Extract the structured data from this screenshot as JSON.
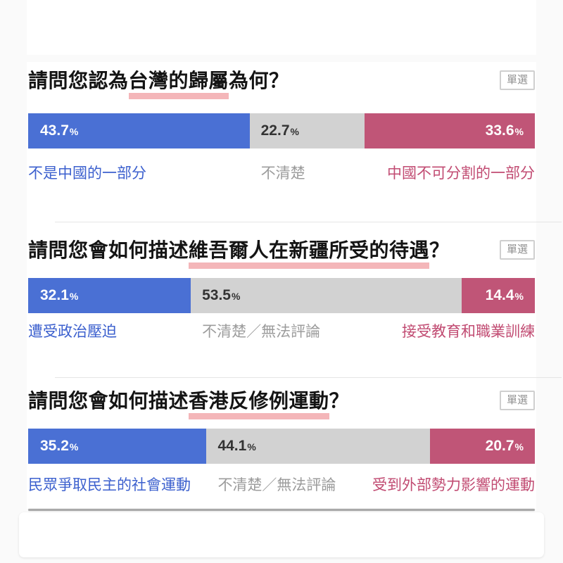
{
  "badge_label": "單選",
  "percent_sign": "%",
  "colors": {
    "page_background": "#fafafa",
    "card_background": "#ffffff",
    "bar_blue": "#4a70d4",
    "bar_gray": "#d2d2d2",
    "bar_pink": "#c05577",
    "label_blue": "#3c60ce",
    "label_gray": "#9c9c9c",
    "label_pink": "#c14b72",
    "title_highlight": "#f4b6b9",
    "divider": "#e5e5e5"
  },
  "questions": [
    {
      "title_prefix": "請問您認為",
      "title_highlight": "台灣的歸屬",
      "title_suffix": "為何？",
      "badge": "單選",
      "segments": [
        {
          "label": "不是中國的一部分",
          "value": 43.7
        },
        {
          "label": "不清楚",
          "value": 22.7
        },
        {
          "label": "中國不可分割的一部分",
          "value": 33.6
        }
      ]
    },
    {
      "title_prefix": "請問您會如何描述",
      "title_highlight": "維吾爾人在新疆所受的待遇",
      "title_suffix": "？",
      "badge": "單選",
      "segments": [
        {
          "label": "遭受政治壓迫",
          "value": 32.1
        },
        {
          "label": "不清楚／無法評論",
          "value": 53.5
        },
        {
          "label": "接受教育和職業訓練",
          "value": 14.4
        }
      ]
    },
    {
      "title_prefix": "請問您會如何描述",
      "title_highlight": "香港反修例運動",
      "title_suffix": "？",
      "badge": "單選",
      "segments": [
        {
          "label": "民眾爭取民主的社會運動",
          "value": 35.2
        },
        {
          "label": "不清楚／無法評論",
          "value": 44.1
        },
        {
          "label": "受到外部勢力影響的運動",
          "value": 20.7
        }
      ]
    }
  ],
  "chart_data": [
    {
      "type": "bar",
      "subtype": "horizontal-stacked-100percent",
      "title": "請問您認為台灣的歸屬為何？",
      "badge": "單選",
      "categories": [
        "不是中國的一部分",
        "不清楚",
        "中國不可分割的一部分"
      ],
      "values": [
        43.7,
        22.7,
        33.6
      ],
      "colors": [
        "#4a70d4",
        "#d2d2d2",
        "#c05577"
      ],
      "xlim": [
        0,
        100
      ],
      "grid": false,
      "legend_position": "below-bar-inline"
    },
    {
      "type": "bar",
      "subtype": "horizontal-stacked-100percent",
      "title": "請問您會如何描述維吾爾人在新疆所受的待遇？",
      "badge": "單選",
      "categories": [
        "遭受政治壓迫",
        "不清楚／無法評論",
        "接受教育和職業訓練"
      ],
      "values": [
        32.1,
        53.5,
        14.4
      ],
      "colors": [
        "#4a70d4",
        "#d2d2d2",
        "#c05577"
      ],
      "xlim": [
        0,
        100
      ],
      "grid": false,
      "legend_position": "below-bar-inline"
    },
    {
      "type": "bar",
      "subtype": "horizontal-stacked-100percent",
      "title": "請問您會如何描述香港反修例運動？",
      "badge": "單選",
      "categories": [
        "民眾爭取民主的社會運動",
        "不清楚／無法評論",
        "受到外部勢力影響的運動"
      ],
      "values": [
        35.2,
        44.1,
        20.7
      ],
      "colors": [
        "#4a70d4",
        "#d2d2d2",
        "#c05577"
      ],
      "xlim": [
        0,
        100
      ],
      "grid": false,
      "legend_position": "below-bar-inline"
    }
  ]
}
